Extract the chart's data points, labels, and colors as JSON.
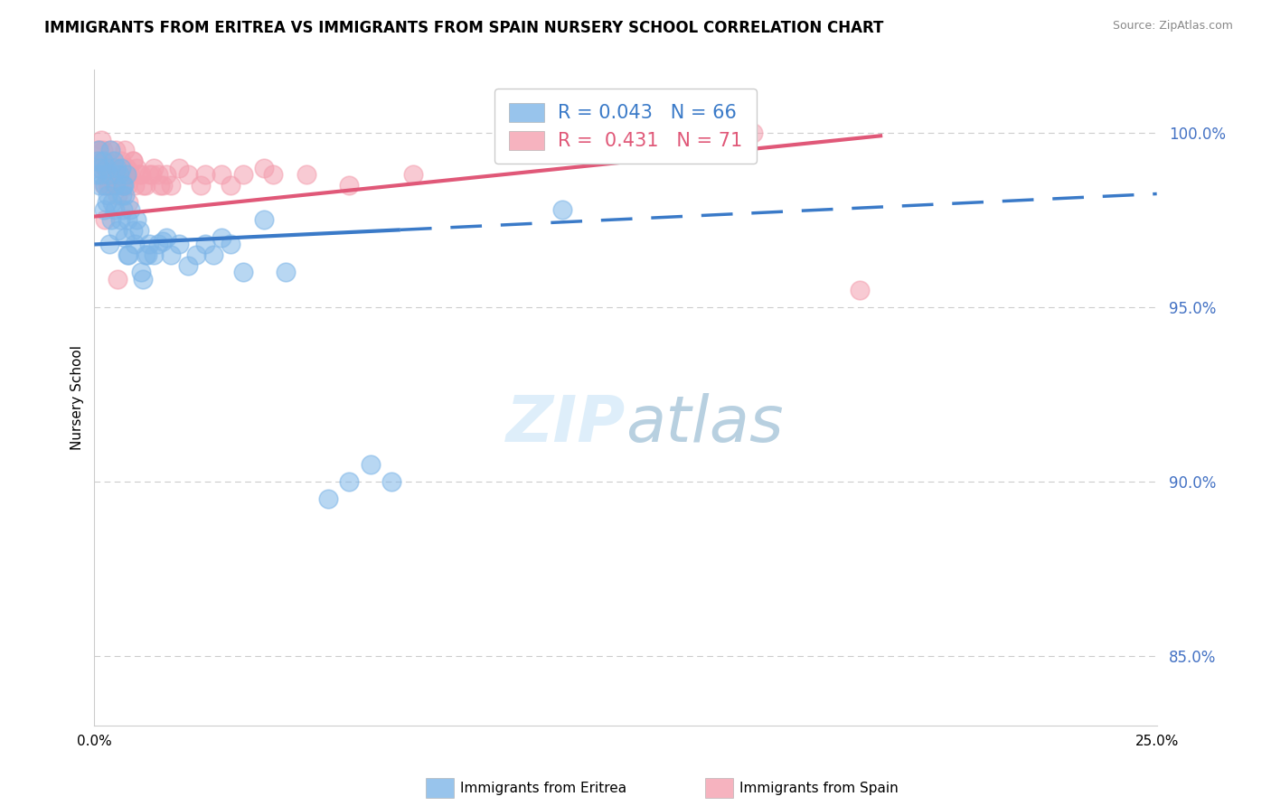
{
  "title": "IMMIGRANTS FROM ERITREA VS IMMIGRANTS FROM SPAIN NURSERY SCHOOL CORRELATION CHART",
  "source": "Source: ZipAtlas.com",
  "ylabel": "Nursery School",
  "xlim": [
    0.0,
    25.0
  ],
  "ylim": [
    83.0,
    101.8
  ],
  "eritrea_color": "#7EB6E8",
  "eritrea_line_color": "#3A7AC8",
  "spain_color": "#F4A0B0",
  "spain_line_color": "#E05878",
  "eritrea_R": 0.043,
  "eritrea_N": 66,
  "spain_R": 0.431,
  "spain_N": 71,
  "legend_label_eritrea": "Immigrants from Eritrea",
  "legend_label_spain": "Immigrants from Spain",
  "ytick_positions": [
    85.0,
    90.0,
    95.0,
    100.0
  ],
  "ytick_labels": [
    "85.0%",
    "90.0%",
    "95.0%",
    "100.0%"
  ],
  "ytick_color": "#4472C4",
  "grid_color": "#CCCCCC",
  "watermark_zip_color": "#C8DCF0",
  "watermark_atlas_color": "#8AAEC8",
  "eritrea_line_y0": 96.8,
  "eritrea_line_slope": 0.058,
  "eritrea_solid_end": 7.2,
  "spain_line_y0": 97.6,
  "spain_line_slope": 0.125,
  "spain_line_end": 18.5,
  "eritrea_scatter_x": [
    0.05,
    0.08,
    0.1,
    0.12,
    0.15,
    0.17,
    0.2,
    0.22,
    0.25,
    0.28,
    0.3,
    0.32,
    0.35,
    0.38,
    0.4,
    0.42,
    0.45,
    0.48,
    0.5,
    0.52,
    0.55,
    0.58,
    0.6,
    0.62,
    0.65,
    0.68,
    0.7,
    0.72,
    0.75,
    0.78,
    0.8,
    0.85,
    0.9,
    0.95,
    1.0,
    1.05,
    1.1,
    1.15,
    1.2,
    1.3,
    1.4,
    1.5,
    1.6,
    1.7,
    1.8,
    2.0,
    2.2,
    2.4,
    2.6,
    2.8,
    3.0,
    3.2,
    3.5,
    4.0,
    4.5,
    5.5,
    6.0,
    6.5,
    7.0,
    1.25,
    0.68,
    0.72,
    0.78,
    11.0,
    14.0,
    0.35
  ],
  "eritrea_scatter_y": [
    98.8,
    99.2,
    99.5,
    98.5,
    99.0,
    98.8,
    99.2,
    97.8,
    98.5,
    98.0,
    99.0,
    98.2,
    98.8,
    99.5,
    97.5,
    98.0,
    99.2,
    97.8,
    98.5,
    99.0,
    97.2,
    98.8,
    97.5,
    99.0,
    98.2,
    97.8,
    98.5,
    97.0,
    98.8,
    97.5,
    96.5,
    97.8,
    97.2,
    96.8,
    97.5,
    97.2,
    96.0,
    95.8,
    96.5,
    96.8,
    96.5,
    96.8,
    96.9,
    97.0,
    96.5,
    96.8,
    96.2,
    96.5,
    96.8,
    96.5,
    97.0,
    96.8,
    96.0,
    97.5,
    96.0,
    89.5,
    90.0,
    90.5,
    90.0,
    96.5,
    98.5,
    98.2,
    96.5,
    97.8,
    100.0,
    96.8
  ],
  "spain_scatter_x": [
    0.05,
    0.08,
    0.1,
    0.12,
    0.15,
    0.17,
    0.2,
    0.22,
    0.25,
    0.28,
    0.3,
    0.32,
    0.35,
    0.38,
    0.4,
    0.42,
    0.45,
    0.48,
    0.5,
    0.52,
    0.55,
    0.58,
    0.6,
    0.62,
    0.65,
    0.68,
    0.7,
    0.72,
    0.75,
    0.78,
    0.8,
    0.85,
    0.9,
    0.95,
    1.0,
    1.1,
    1.2,
    1.3,
    1.4,
    1.5,
    1.6,
    1.7,
    1.8,
    2.0,
    2.2,
    2.5,
    3.0,
    3.5,
    4.0,
    5.0,
    6.0,
    7.5,
    10.0,
    12.5,
    15.0,
    15.5,
    18.0,
    0.25,
    0.55,
    0.35,
    0.45,
    0.65,
    0.75,
    0.9,
    1.05,
    1.15,
    1.35,
    1.55,
    4.2,
    3.2,
    2.6
  ],
  "spain_scatter_y": [
    99.2,
    99.5,
    99.0,
    99.5,
    99.2,
    99.8,
    99.5,
    98.5,
    99.0,
    98.8,
    99.2,
    98.5,
    99.0,
    99.5,
    98.8,
    99.2,
    98.5,
    99.0,
    99.5,
    98.8,
    98.2,
    99.0,
    98.8,
    99.2,
    98.5,
    99.0,
    98.8,
    99.5,
    99.0,
    98.5,
    98.0,
    98.8,
    99.2,
    98.5,
    99.0,
    98.8,
    98.5,
    98.8,
    99.0,
    98.8,
    98.5,
    98.8,
    98.5,
    99.0,
    98.8,
    98.5,
    98.8,
    98.8,
    99.0,
    98.8,
    98.5,
    98.8,
    100.0,
    100.0,
    100.0,
    100.0,
    95.5,
    97.5,
    95.8,
    98.5,
    98.8,
    98.5,
    99.0,
    99.2,
    98.8,
    98.5,
    98.8,
    98.5,
    98.8,
    98.5,
    98.8
  ]
}
